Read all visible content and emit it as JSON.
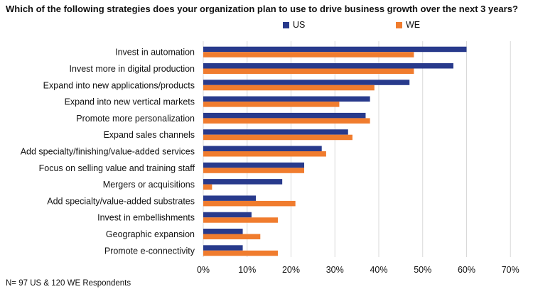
{
  "title": "Which of the following strategies does your organization plan to use to drive business growth over the next 3 years?",
  "footnote": "N= 97 US & 120 WE Respondents",
  "colors": {
    "US": "#283a8c",
    "WE": "#f07c2e",
    "grid": "#d9d9d9"
  },
  "chart_data": {
    "type": "bar",
    "orientation": "horizontal",
    "title": "Which of the following strategies does your organization plan to use to drive business growth over the next 3 years?",
    "categories": [
      "Invest in automation",
      "Invest more in digital production",
      "Expand into new applications/products",
      "Expand into new vertical markets",
      "Promote more personalization",
      "Expand sales channels",
      "Add specialty/finishing/value-added services",
      "Focus on selling value and training staff",
      "Mergers or acquisitions",
      "Add specialty/value-added substrates",
      "Invest in embellishments",
      "Geographic expansion",
      "Promote e-connectivity"
    ],
    "series": [
      {
        "name": "US",
        "values": [
          60,
          57,
          47,
          38,
          37,
          33,
          27,
          23,
          18,
          12,
          11,
          9,
          9
        ]
      },
      {
        "name": "WE",
        "values": [
          48,
          48,
          39,
          31,
          38,
          34,
          28,
          23,
          2,
          21,
          17,
          13,
          17
        ]
      }
    ],
    "xlim": [
      0,
      70
    ],
    "xticks": [
      "0%",
      "10%",
      "20%",
      "30%",
      "40%",
      "50%",
      "60%",
      "70%"
    ],
    "grid": "vertical",
    "legend_position": "top"
  }
}
